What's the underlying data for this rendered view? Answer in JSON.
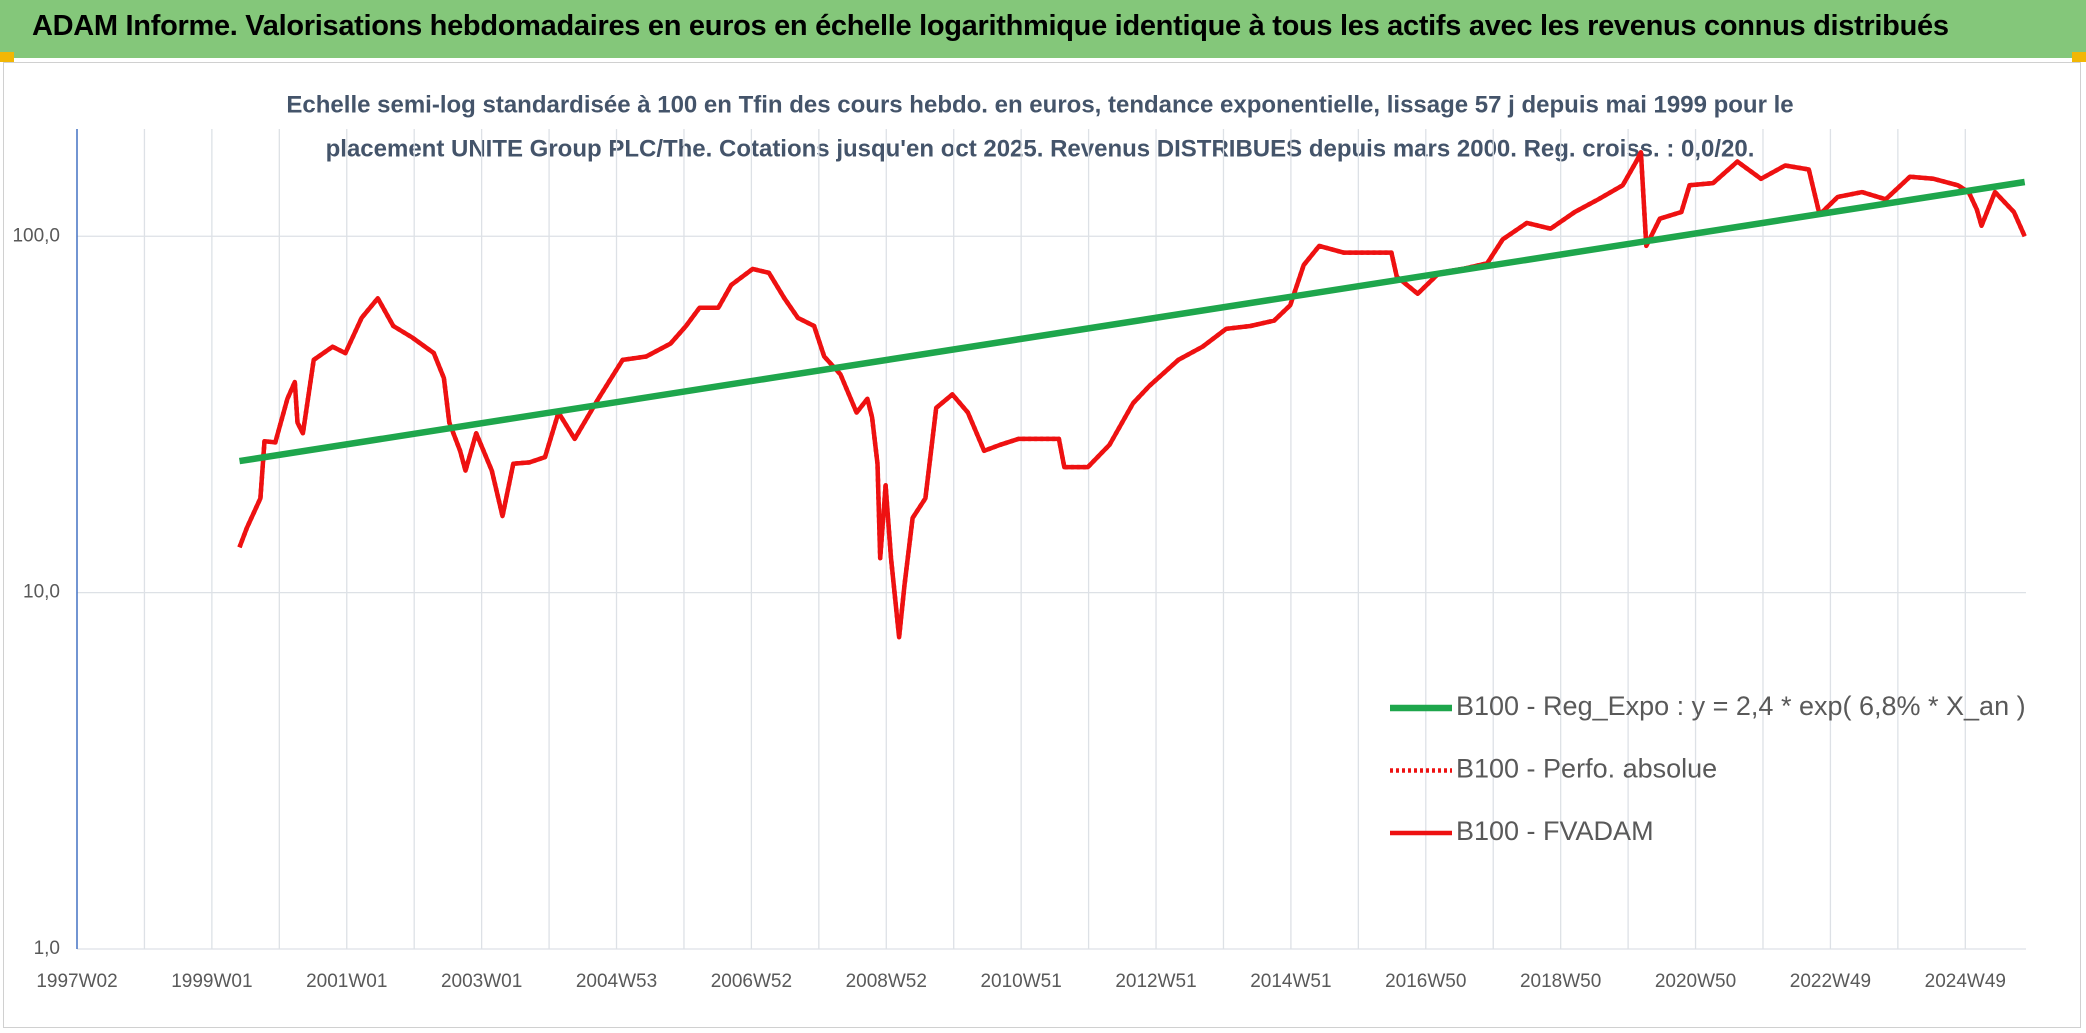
{
  "chart_data": {
    "type": "line",
    "title": "ADAM Informe. Valorisations hebdomadaires en euros en échelle logarithmique identique à tous les actifs avec les revenus connus distribués",
    "subtitle": [
      "Echelle semi-log standardisée à 100 en Tfin des cours hebdo. en euros, tendance exponentielle, lissage 57 j depuis mai 1999 pour le",
      "placement UNITE Group PLC/The. Cotations jusqu'en oct 2025. Revenus DISTRIBUES depuis mars 2000. Reg. croiss. : 0,0/20."
    ],
    "log_scale": true,
    "grid": true,
    "legend": "right",
    "xlim": [
      1997,
      2025.9
    ],
    "xticks": [
      {
        "value": 1997,
        "label": "1997W02"
      },
      {
        "value": 1998,
        "label": null
      },
      {
        "value": 1999,
        "label": "1999W01"
      },
      {
        "value": 2000,
        "label": null
      },
      {
        "value": 2001,
        "label": "2001W01"
      },
      {
        "value": 2002,
        "label": null
      },
      {
        "value": 2003,
        "label": "2003W01"
      },
      {
        "value": 2004,
        "label": null
      },
      {
        "value": 2005,
        "label": "2004W53"
      },
      {
        "value": 2006,
        "label": null
      },
      {
        "value": 2007,
        "label": "2006W52"
      },
      {
        "value": 2008,
        "label": null
      },
      {
        "value": 2009,
        "label": "2008W52"
      },
      {
        "value": 2010,
        "label": null
      },
      {
        "value": 2011,
        "label": "2010W51"
      },
      {
        "value": 2012,
        "label": null
      },
      {
        "value": 2013,
        "label": "2012W51"
      },
      {
        "value": 2014,
        "label": null
      },
      {
        "value": 2015,
        "label": "2014W51"
      },
      {
        "value": 2016,
        "label": null
      },
      {
        "value": 2017,
        "label": "2016W50"
      },
      {
        "value": 2018,
        "label": null
      },
      {
        "value": 2019,
        "label": "2018W50"
      },
      {
        "value": 2020,
        "label": null
      },
      {
        "value": 2021,
        "label": "2020W50"
      },
      {
        "value": 2022,
        "label": null
      },
      {
        "value": 2023,
        "label": "2022W49"
      },
      {
        "value": 2024,
        "label": null
      },
      {
        "value": 2025,
        "label": "2024W49"
      }
    ],
    "ylim": [
      1,
      200
    ],
    "yticks": [
      {
        "value": 1,
        "label": "1,0"
      },
      {
        "value": 10,
        "label": "10,0"
      },
      {
        "value": 100,
        "label": "100,0"
      }
    ],
    "series": [
      {
        "name": "B100 - Reg_Expo : y = 2,4 * exp( 6,8% *  X_an )",
        "color": "#1ea64c",
        "style": "solid",
        "width": 6.5,
        "x": [
          1999.41,
          2025.88
        ],
        "values": [
          23.4,
          142
        ]
      },
      {
        "name": "B100 - Perfo. absolue",
        "color": "#ee1111",
        "style": "dotted",
        "width": 4.5,
        "x": [
          1999.41,
          1999.52,
          1999.72,
          1999.78,
          1999.94,
          2000.12,
          2000.23,
          2000.27,
          2000.35,
          2000.51,
          2000.79,
          2000.98,
          2001.22,
          2001.46,
          2001.69,
          2001.97,
          2002.29,
          2002.44,
          2002.52,
          2002.68,
          2002.76,
          2002.92,
          2003.15,
          2003.31,
          2003.47,
          2003.71,
          2003.94,
          2004.14,
          2004.38,
          2004.73,
          2005.09,
          2005.44,
          2005.8,
          2006.03,
          2006.23,
          2006.51,
          2006.7,
          2007.02,
          2007.26,
          2007.49,
          2007.69,
          2007.93,
          2008.08,
          2008.32,
          2008.56,
          2008.72,
          2008.79,
          2008.87,
          2008.91,
          2008.99,
          2009.07,
          2009.19,
          2009.27,
          2009.39,
          2009.58,
          2009.74,
          2009.98,
          2010.21,
          2010.45,
          2010.69,
          2010.96,
          2011.32,
          2011.56,
          2011.64,
          2011.99,
          2012.31,
          2012.66,
          2012.9,
          2013.33,
          2013.69,
          2014.04,
          2014.4,
          2014.75,
          2014.99,
          2015.19,
          2015.42,
          2015.78,
          2016.13,
          2016.49,
          2016.57,
          2016.88,
          2017.2,
          2017.55,
          2017.91,
          2018.14,
          2018.5,
          2018.85,
          2019.21,
          2019.56,
          2019.92,
          2020.12,
          2020.19,
          2020.27,
          2020.47,
          2020.79,
          2020.91,
          2021.26,
          2021.62,
          2021.97,
          2022.33,
          2022.68,
          2022.84,
          2023.11,
          2023.47,
          2023.82,
          2024.18,
          2024.53,
          2024.89,
          2025.05,
          2025.17,
          2025.24,
          2025.44,
          2025.72,
          2025.88
        ],
        "values": [
          13.4,
          15.2,
          18.4,
          26.6,
          26.4,
          35,
          39,
          30,
          28,
          45,
          49,
          47,
          59,
          67,
          56,
          52,
          47,
          40,
          30,
          25,
          22,
          28,
          22,
          16.4,
          23,
          23.2,
          24,
          32,
          27,
          35,
          45,
          46,
          50,
          56,
          63,
          63,
          73,
          81,
          79,
          67,
          59,
          56,
          46,
          41,
          32,
          35,
          31,
          23,
          12.5,
          20,
          12.5,
          7.5,
          10.5,
          16.2,
          18.4,
          33,
          36,
          32,
          25,
          26,
          27,
          27,
          27,
          22.5,
          22.5,
          26,
          34,
          38,
          45,
          49,
          55,
          56,
          58,
          64,
          83,
          94,
          90,
          90,
          90,
          77,
          69,
          79,
          81,
          84,
          98,
          109,
          105,
          117,
          127,
          139,
          162,
          172,
          94,
          112,
          117,
          139,
          141,
          162,
          145,
          158,
          154,
          115,
          129,
          133,
          127,
          147,
          145,
          139,
          133,
          119,
          107,
          133,
          117,
          100
        ]
      },
      {
        "name": "B100 - FVADAM",
        "color": "#ee1111",
        "style": "solid",
        "width": 4.5,
        "x": [
          1999.41,
          1999.52,
          1999.72,
          1999.78,
          1999.94,
          2000.12,
          2000.23,
          2000.27,
          2000.35,
          2000.51,
          2000.79,
          2000.98,
          2001.22,
          2001.46,
          2001.69,
          2001.97,
          2002.29,
          2002.44,
          2002.52,
          2002.68,
          2002.76,
          2002.92,
          2003.15,
          2003.31,
          2003.47,
          2003.71,
          2003.94,
          2004.14,
          2004.38,
          2004.73,
          2005.09,
          2005.44,
          2005.8,
          2006.03,
          2006.23,
          2006.51,
          2006.7,
          2007.02,
          2007.26,
          2007.49,
          2007.69,
          2007.93,
          2008.08,
          2008.32,
          2008.56,
          2008.72,
          2008.79,
          2008.87,
          2008.91,
          2008.99,
          2009.07,
          2009.19,
          2009.27,
          2009.39,
          2009.58,
          2009.74,
          2009.98,
          2010.21,
          2010.45,
          2010.69,
          2010.96,
          2011.32,
          2011.56,
          2011.64,
          2011.99,
          2012.31,
          2012.66,
          2012.9,
          2013.33,
          2013.69,
          2014.04,
          2014.4,
          2014.75,
          2014.99,
          2015.19,
          2015.42,
          2015.78,
          2016.13,
          2016.49,
          2016.57,
          2016.88,
          2017.2,
          2017.55,
          2017.91,
          2018.14,
          2018.5,
          2018.85,
          2019.21,
          2019.56,
          2019.92,
          2020.12,
          2020.19,
          2020.27,
          2020.47,
          2020.79,
          2020.91,
          2021.26,
          2021.62,
          2021.97,
          2022.33,
          2022.68,
          2022.84,
          2023.11,
          2023.47,
          2023.82,
          2024.18,
          2024.53,
          2024.89,
          2025.05,
          2025.17,
          2025.24,
          2025.44,
          2025.72,
          2025.88
        ],
        "values": [
          13.4,
          15.2,
          18.4,
          26.6,
          26.4,
          35,
          39,
          30,
          28,
          45,
          49,
          47,
          59,
          67,
          56,
          52,
          47,
          40,
          30,
          25,
          22,
          28,
          22,
          16.4,
          23,
          23.2,
          24,
          32,
          27,
          35,
          45,
          46,
          50,
          56,
          63,
          63,
          73,
          81,
          79,
          67,
          59,
          56,
          46,
          41,
          32,
          35,
          31,
          23,
          12.5,
          20,
          12.5,
          7.5,
          10.5,
          16.2,
          18.4,
          33,
          36,
          32,
          25,
          26,
          27,
          27,
          27,
          22.5,
          22.5,
          26,
          34,
          38,
          45,
          49,
          55,
          56,
          58,
          64,
          83,
          94,
          90,
          90,
          90,
          77,
          69,
          79,
          81,
          84,
          98,
          109,
          105,
          117,
          127,
          139,
          162,
          172,
          94,
          112,
          117,
          139,
          141,
          162,
          145,
          158,
          154,
          115,
          129,
          133,
          127,
          147,
          145,
          139,
          133,
          119,
          107,
          133,
          117,
          100
        ]
      }
    ]
  }
}
